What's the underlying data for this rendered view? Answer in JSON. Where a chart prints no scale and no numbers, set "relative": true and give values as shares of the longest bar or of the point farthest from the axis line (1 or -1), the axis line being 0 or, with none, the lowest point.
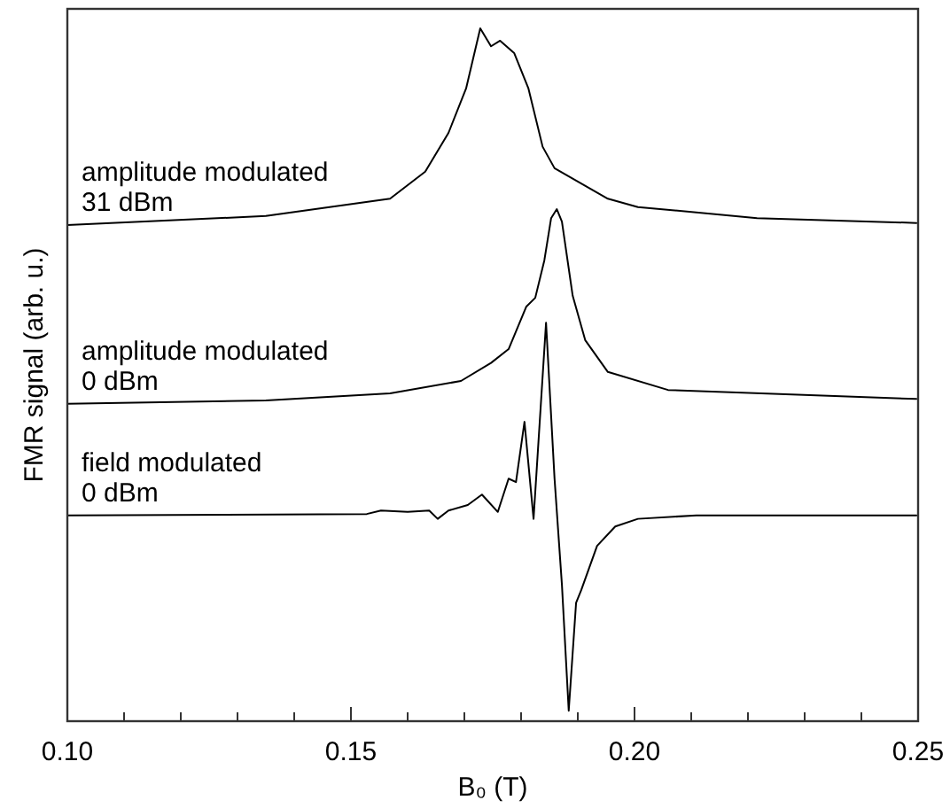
{
  "chart_data": {
    "type": "line",
    "xlabel": "B₀ (T)",
    "ylabel": "FMR signal (arb. u.)",
    "relative": true,
    "xlim": [
      0.1,
      0.25
    ],
    "xticks": [
      {
        "value": 0.1,
        "label": "0.10"
      },
      {
        "value": 0.11,
        "label": null
      },
      {
        "value": 0.12,
        "label": null
      },
      {
        "value": 0.13,
        "label": null
      },
      {
        "value": 0.14,
        "label": null
      },
      {
        "value": 0.15,
        "label": "0.15"
      },
      {
        "value": 0.16,
        "label": null
      },
      {
        "value": 0.17,
        "label": null
      },
      {
        "value": 0.18,
        "label": null
      },
      {
        "value": 0.19,
        "label": null
      },
      {
        "value": 0.2,
        "label": "0.20"
      },
      {
        "value": 0.21,
        "label": null
      },
      {
        "value": 0.22,
        "label": null
      },
      {
        "value": 0.23,
        "label": null
      },
      {
        "value": 0.24,
        "label": null
      },
      {
        "value": 0.25,
        "label": "0.25"
      }
    ],
    "tick_labels": "x",
    "grid": false,
    "legend": false,
    "marker": "none",
    "line_style": "solid",
    "series": [
      {
        "name": "amplitude modulated\n31 dBm",
        "color": "#000000",
        "x": [
          0.1,
          0.135,
          0.1569,
          0.1631,
          0.1672,
          0.1703,
          0.1728,
          0.1747,
          0.1763,
          0.1788,
          0.1813,
          0.1838,
          0.1859,
          0.1953,
          0.2006,
          0.2216,
          0.2497
        ],
        "values": [
          0.716,
          0.729,
          0.754,
          0.793,
          0.849,
          0.913,
          1.0,
          0.974,
          0.982,
          0.964,
          0.913,
          0.829,
          0.798,
          0.754,
          0.742,
          0.726,
          0.719
        ]
      },
      {
        "name": "amplitude modulated\n0 dBm",
        "color": "#000000",
        "x": [
          0.1,
          0.135,
          0.1569,
          0.1694,
          0.1747,
          0.1778,
          0.1809,
          0.1825,
          0.1841,
          0.1853,
          0.1863,
          0.1872,
          0.1891,
          0.1913,
          0.1953,
          0.2059,
          0.2497
        ],
        "values": [
          0.458,
          0.463,
          0.473,
          0.491,
          0.517,
          0.537,
          0.598,
          0.611,
          0.665,
          0.726,
          0.739,
          0.721,
          0.614,
          0.55,
          0.504,
          0.478,
          0.465
        ]
      },
      {
        "name": "field modulated\n0 dBm",
        "color": "#000000",
        "x": [
          0.1,
          0.1528,
          0.1553,
          0.16,
          0.1638,
          0.1653,
          0.1672,
          0.1706,
          0.1731,
          0.1759,
          0.1778,
          0.1791,
          0.1806,
          0.1822,
          0.1844,
          0.1859,
          0.1872,
          0.1884,
          0.1897,
          0.1906,
          0.1934,
          0.1966,
          0.2006,
          0.2109,
          0.2497
        ],
        "values": [
          0.297,
          0.299,
          0.304,
          0.302,
          0.304,
          0.292,
          0.304,
          0.312,
          0.327,
          0.302,
          0.35,
          0.345,
          0.432,
          0.292,
          0.575,
          0.35,
          0.197,
          0.015,
          0.171,
          0.189,
          0.253,
          0.281,
          0.292,
          0.297,
          0.297
        ]
      }
    ]
  }
}
